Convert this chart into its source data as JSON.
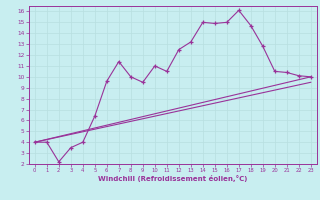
{
  "xlabel": "Windchill (Refroidissement éolien,°C)",
  "bg_color": "#c8eef0",
  "line_color": "#993399",
  "grid_color": "#b8dfe0",
  "xlim": [
    -0.5,
    23.5
  ],
  "ylim": [
    2,
    16.5
  ],
  "xticks": [
    0,
    1,
    2,
    3,
    4,
    5,
    6,
    7,
    8,
    9,
    10,
    11,
    12,
    13,
    14,
    15,
    16,
    17,
    18,
    19,
    20,
    21,
    22,
    23
  ],
  "yticks": [
    2,
    3,
    4,
    5,
    6,
    7,
    8,
    9,
    10,
    11,
    12,
    13,
    14,
    15,
    16
  ],
  "line1_x": [
    0,
    1,
    2,
    3,
    4,
    5,
    6,
    7,
    8,
    9,
    10,
    11,
    12,
    13,
    14,
    15,
    16,
    17,
    18,
    19,
    20,
    21,
    22,
    23
  ],
  "line1_y": [
    4.0,
    4.0,
    2.2,
    3.5,
    4.0,
    6.4,
    9.6,
    11.4,
    10.0,
    9.5,
    11.0,
    10.5,
    12.5,
    13.2,
    15.0,
    14.9,
    15.0,
    16.1,
    14.7,
    12.8,
    10.5,
    10.4,
    10.1,
    10.0
  ],
  "line2_x": [
    0,
    23
  ],
  "line2_y": [
    4.0,
    10.0
  ],
  "line3_x": [
    0,
    23
  ],
  "line3_y": [
    4.0,
    9.5
  ]
}
